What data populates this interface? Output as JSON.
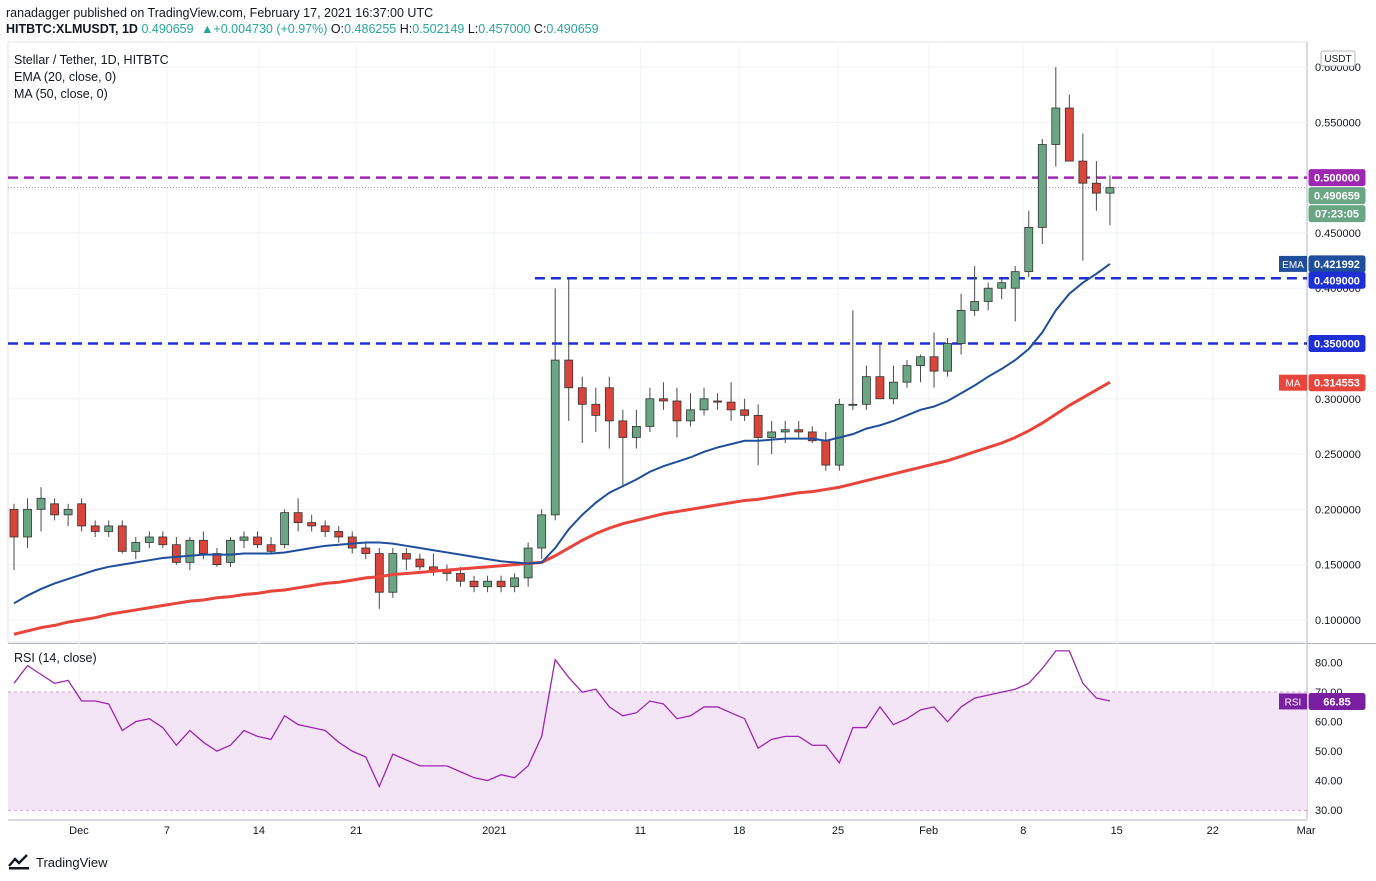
{
  "header": {
    "published_line": "ranadagger published on TradingView.com, February 17, 2021 16:37:00 UTC",
    "symbol": "HITBTC:XLMUSDT, 1D",
    "last": "0.490659",
    "change": "▲+0.004730 (+0.97%)",
    "o_label": "O:",
    "o_value": "0.486255",
    "h_label": "H:",
    "h_value": "0.502149",
    "l_label": "L:",
    "l_value": "0.457000",
    "c_label": "C:",
    "c_value": "0.490659"
  },
  "legend": {
    "title": "Stellar / Tether, 1D, HITBTC",
    "ema": "EMA (20, close, 0)",
    "ma": "MA (50, close, 0)",
    "rsi": "RSI (14, close)"
  },
  "currency_badge": "USDT",
  "price_labels": {
    "resistance": "0.500000",
    "last": "0.490659",
    "countdown": "07:23:05",
    "ema_tag": "EMA",
    "ema_value": "0.421992",
    "support1": "0.409000",
    "support2": "0.350000",
    "ma_tag": "MA",
    "ma_value": "0.314553",
    "rsi_tag": "RSI",
    "rsi_value": "66.85"
  },
  "footer": {
    "brand": "TradingView"
  },
  "colors": {
    "up": "#6aa584",
    "down": "#d9453b",
    "ema": "#1f4e9c",
    "ma": "#e8453c",
    "resistance": "#9c27b0",
    "support": "#1e2fd6",
    "rsi": "#9c27b0",
    "rsi_band": "#f3e5f5"
  },
  "chart_data": {
    "type": "candlestick",
    "title": "Stellar / Tether, 1D, HITBTC",
    "y_range": [
      0.08,
      0.62
    ],
    "y_ticks": [
      "0.600000",
      "0.550000",
      "0.500000",
      "0.450000",
      "0.400000",
      "0.350000",
      "0.300000",
      "0.250000",
      "0.200000",
      "0.150000",
      "0.100000"
    ],
    "x_ticks": [
      "Dec",
      "7",
      "14",
      "21",
      "2021",
      "11",
      "18",
      "25",
      "Feb",
      "8",
      "15",
      "22",
      "Mar"
    ],
    "horizontal_lines": [
      0.5,
      0.409,
      0.35
    ],
    "candles": [
      [
        0.2,
        0.205,
        0.145,
        0.175
      ],
      [
        0.175,
        0.21,
        0.165,
        0.2
      ],
      [
        0.2,
        0.22,
        0.18,
        0.21
      ],
      [
        0.205,
        0.21,
        0.19,
        0.195
      ],
      [
        0.195,
        0.205,
        0.185,
        0.2
      ],
      [
        0.205,
        0.21,
        0.18,
        0.185
      ],
      [
        0.185,
        0.19,
        0.175,
        0.18
      ],
      [
        0.18,
        0.19,
        0.175,
        0.185
      ],
      [
        0.185,
        0.19,
        0.16,
        0.162
      ],
      [
        0.162,
        0.175,
        0.155,
        0.17
      ],
      [
        0.17,
        0.18,
        0.165,
        0.175
      ],
      [
        0.175,
        0.18,
        0.165,
        0.168
      ],
      [
        0.168,
        0.175,
        0.15,
        0.152
      ],
      [
        0.152,
        0.175,
        0.145,
        0.172
      ],
      [
        0.172,
        0.18,
        0.155,
        0.16
      ],
      [
        0.16,
        0.165,
        0.148,
        0.15
      ],
      [
        0.152,
        0.175,
        0.148,
        0.172
      ],
      [
        0.172,
        0.18,
        0.165,
        0.175
      ],
      [
        0.175,
        0.18,
        0.165,
        0.168
      ],
      [
        0.168,
        0.175,
        0.16,
        0.162
      ],
      [
        0.168,
        0.2,
        0.165,
        0.197
      ],
      [
        0.197,
        0.21,
        0.18,
        0.188
      ],
      [
        0.188,
        0.195,
        0.18,
        0.185
      ],
      [
        0.185,
        0.19,
        0.175,
        0.18
      ],
      [
        0.18,
        0.185,
        0.17,
        0.175
      ],
      [
        0.175,
        0.18,
        0.16,
        0.165
      ],
      [
        0.165,
        0.17,
        0.155,
        0.16
      ],
      [
        0.16,
        0.165,
        0.11,
        0.125
      ],
      [
        0.125,
        0.165,
        0.12,
        0.16
      ],
      [
        0.16,
        0.165,
        0.145,
        0.155
      ],
      [
        0.155,
        0.16,
        0.145,
        0.148
      ],
      [
        0.148,
        0.16,
        0.14,
        0.145
      ],
      [
        0.145,
        0.15,
        0.135,
        0.142
      ],
      [
        0.142,
        0.148,
        0.13,
        0.135
      ],
      [
        0.135,
        0.14,
        0.125,
        0.13
      ],
      [
        0.13,
        0.14,
        0.125,
        0.135
      ],
      [
        0.135,
        0.14,
        0.125,
        0.13
      ],
      [
        0.13,
        0.142,
        0.125,
        0.138
      ],
      [
        0.138,
        0.17,
        0.13,
        0.165
      ],
      [
        0.165,
        0.2,
        0.155,
        0.195
      ],
      [
        0.195,
        0.4,
        0.19,
        0.335
      ],
      [
        0.335,
        0.408,
        0.28,
        0.31
      ],
      [
        0.31,
        0.32,
        0.26,
        0.295
      ],
      [
        0.295,
        0.31,
        0.27,
        0.285
      ],
      [
        0.31,
        0.32,
        0.255,
        0.28
      ],
      [
        0.28,
        0.29,
        0.22,
        0.265
      ],
      [
        0.265,
        0.29,
        0.255,
        0.275
      ],
      [
        0.275,
        0.31,
        0.27,
        0.3
      ],
      [
        0.3,
        0.315,
        0.29,
        0.298
      ],
      [
        0.298,
        0.31,
        0.265,
        0.28
      ],
      [
        0.28,
        0.305,
        0.275,
        0.29
      ],
      [
        0.29,
        0.31,
        0.285,
        0.3
      ],
      [
        0.298,
        0.305,
        0.29,
        0.297
      ],
      [
        0.297,
        0.315,
        0.28,
        0.29
      ],
      [
        0.29,
        0.3,
        0.28,
        0.285
      ],
      [
        0.285,
        0.295,
        0.24,
        0.265
      ],
      [
        0.265,
        0.28,
        0.25,
        0.27
      ],
      [
        0.27,
        0.28,
        0.26,
        0.272
      ],
      [
        0.272,
        0.28,
        0.265,
        0.27
      ],
      [
        0.27,
        0.275,
        0.26,
        0.262
      ],
      [
        0.262,
        0.27,
        0.235,
        0.24
      ],
      [
        0.24,
        0.3,
        0.235,
        0.295
      ],
      [
        0.295,
        0.38,
        0.29,
        0.295
      ],
      [
        0.295,
        0.33,
        0.29,
        0.32
      ],
      [
        0.32,
        0.35,
        0.3,
        0.3
      ],
      [
        0.3,
        0.33,
        0.295,
        0.315
      ],
      [
        0.315,
        0.335,
        0.31,
        0.33
      ],
      [
        0.33,
        0.34,
        0.315,
        0.338
      ],
      [
        0.338,
        0.36,
        0.31,
        0.325
      ],
      [
        0.325,
        0.355,
        0.32,
        0.35
      ],
      [
        0.35,
        0.395,
        0.34,
        0.38
      ],
      [
        0.38,
        0.42,
        0.375,
        0.388
      ],
      [
        0.388,
        0.405,
        0.38,
        0.4
      ],
      [
        0.4,
        0.41,
        0.39,
        0.405
      ],
      [
        0.4,
        0.42,
        0.37,
        0.415
      ],
      [
        0.415,
        0.47,
        0.41,
        0.455
      ],
      [
        0.455,
        0.535,
        0.44,
        0.53
      ],
      [
        0.53,
        0.6,
        0.51,
        0.563
      ],
      [
        0.563,
        0.575,
        0.515,
        0.515
      ],
      [
        0.515,
        0.54,
        0.425,
        0.495
      ],
      [
        0.495,
        0.515,
        0.47,
        0.486
      ],
      [
        0.486,
        0.502,
        0.457,
        0.491
      ]
    ],
    "ema": [
      0.115,
      0.122,
      0.128,
      0.133,
      0.137,
      0.141,
      0.145,
      0.148,
      0.15,
      0.152,
      0.154,
      0.156,
      0.157,
      0.158,
      0.159,
      0.159,
      0.159,
      0.16,
      0.16,
      0.16,
      0.161,
      0.163,
      0.165,
      0.167,
      0.168,
      0.169,
      0.17,
      0.17,
      0.169,
      0.167,
      0.165,
      0.163,
      0.161,
      0.159,
      0.157,
      0.155,
      0.153,
      0.152,
      0.151,
      0.152,
      0.165,
      0.182,
      0.195,
      0.206,
      0.215,
      0.221,
      0.227,
      0.234,
      0.239,
      0.243,
      0.247,
      0.252,
      0.256,
      0.259,
      0.262,
      0.262,
      0.263,
      0.264,
      0.264,
      0.264,
      0.262,
      0.265,
      0.268,
      0.273,
      0.276,
      0.28,
      0.285,
      0.29,
      0.293,
      0.298,
      0.305,
      0.312,
      0.32,
      0.327,
      0.335,
      0.345,
      0.36,
      0.38,
      0.395,
      0.405,
      0.413,
      0.422
    ],
    "ma": [
      0.087,
      0.09,
      0.093,
      0.095,
      0.098,
      0.1,
      0.102,
      0.105,
      0.107,
      0.109,
      0.111,
      0.113,
      0.115,
      0.117,
      0.118,
      0.12,
      0.121,
      0.123,
      0.124,
      0.126,
      0.127,
      0.129,
      0.131,
      0.133,
      0.134,
      0.136,
      0.138,
      0.139,
      0.141,
      0.142,
      0.143,
      0.144,
      0.145,
      0.146,
      0.147,
      0.148,
      0.149,
      0.15,
      0.151,
      0.152,
      0.158,
      0.165,
      0.172,
      0.178,
      0.183,
      0.187,
      0.19,
      0.193,
      0.196,
      0.198,
      0.2,
      0.202,
      0.204,
      0.206,
      0.208,
      0.209,
      0.211,
      0.213,
      0.215,
      0.216,
      0.218,
      0.22,
      0.223,
      0.226,
      0.229,
      0.232,
      0.235,
      0.238,
      0.241,
      0.244,
      0.248,
      0.252,
      0.256,
      0.26,
      0.265,
      0.271,
      0.278,
      0.286,
      0.294,
      0.301,
      0.308,
      0.315
    ],
    "rsi": {
      "range": [
        28,
        86
      ],
      "ticks": [
        "80.00",
        "70.00",
        "60.00",
        "50.00",
        "40.00",
        "30.00"
      ],
      "band": [
        30,
        70
      ],
      "values": [
        73,
        79,
        76,
        73,
        74,
        67,
        67,
        66,
        57,
        60,
        61,
        58,
        52,
        57,
        53,
        50,
        52,
        57,
        55,
        54,
        62,
        59,
        58,
        57,
        53,
        50,
        48,
        38,
        49,
        47,
        45,
        45,
        45,
        43,
        41,
        40,
        42,
        41,
        45,
        55,
        81,
        75,
        70,
        71,
        65,
        62,
        63,
        67,
        66,
        61,
        62,
        65,
        65,
        63,
        61,
        51,
        54,
        55,
        55,
        52,
        52,
        46,
        58,
        58,
        65,
        59,
        61,
        64,
        65,
        60,
        65,
        68,
        69,
        70,
        71,
        73,
        78,
        84,
        84,
        73,
        68,
        67
      ]
    }
  }
}
